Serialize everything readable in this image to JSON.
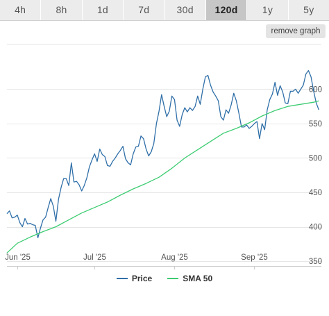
{
  "tabs": [
    {
      "label": "4h",
      "active": false
    },
    {
      "label": "8h",
      "active": false
    },
    {
      "label": "1d",
      "active": false
    },
    {
      "label": "7d",
      "active": false
    },
    {
      "label": "30d",
      "active": false
    },
    {
      "label": "120d",
      "active": true
    },
    {
      "label": "1y",
      "active": false
    },
    {
      "label": "5y",
      "active": false
    }
  ],
  "remove_graph_label": "remove graph",
  "colors": {
    "price": "#2f6fa8",
    "sma": "#3dcc72",
    "grid": "#e6e6e6"
  },
  "legend": [
    {
      "label": "Price",
      "color": "#2f6fa8"
    },
    {
      "label": "SMA 50",
      "color": "#3dcc72"
    }
  ],
  "chart_data": {
    "type": "line",
    "x_unit": "day index (0 = Jun 1 2025)",
    "xlim": [
      -4,
      118
    ],
    "ylim": [
      343,
      665
    ],
    "y_ticks": [
      350,
      400,
      450,
      500,
      550,
      600
    ],
    "x_ticks": [
      {
        "label": "Jun '25",
        "x": 0
      },
      {
        "label": "Jul '25",
        "x": 30
      },
      {
        "label": "Aug '25",
        "x": 61
      },
      {
        "label": "Sep '25",
        "x": 92
      }
    ],
    "grid": true,
    "legend_position": "bottom",
    "series": [
      {
        "name": "Price",
        "points": [
          [
            -4,
            419
          ],
          [
            -3,
            423
          ],
          [
            -2,
            413
          ],
          [
            -1,
            414
          ],
          [
            0,
            417
          ],
          [
            1,
            406
          ],
          [
            2,
            400
          ],
          [
            3,
            412
          ],
          [
            4,
            404
          ],
          [
            5,
            405
          ],
          [
            6,
            403
          ],
          [
            7,
            402
          ],
          [
            8,
            384
          ],
          [
            9,
            398
          ],
          [
            10,
            410
          ],
          [
            11,
            414
          ],
          [
            12,
            428
          ],
          [
            13,
            441
          ],
          [
            14,
            430
          ],
          [
            15,
            408
          ],
          [
            16,
            440
          ],
          [
            17,
            457
          ],
          [
            18,
            470
          ],
          [
            19,
            470
          ],
          [
            20,
            460
          ],
          [
            21,
            493
          ],
          [
            22,
            465
          ],
          [
            23,
            466
          ],
          [
            24,
            461
          ],
          [
            25,
            452
          ],
          [
            26,
            460
          ],
          [
            27,
            471
          ],
          [
            28,
            487
          ],
          [
            29,
            497
          ],
          [
            30,
            506
          ],
          [
            31,
            495
          ],
          [
            32,
            513
          ],
          [
            33,
            505
          ],
          [
            34,
            502
          ],
          [
            35,
            489
          ],
          [
            36,
            488
          ],
          [
            37,
            495
          ],
          [
            38,
            500
          ],
          [
            39,
            506
          ],
          [
            40,
            511
          ],
          [
            41,
            517
          ],
          [
            42,
            499
          ],
          [
            43,
            493
          ],
          [
            44,
            490
          ],
          [
            45,
            506
          ],
          [
            46,
            516
          ],
          [
            47,
            517
          ],
          [
            48,
            532
          ],
          [
            49,
            528
          ],
          [
            50,
            513
          ],
          [
            51,
            503
          ],
          [
            52,
            509
          ],
          [
            53,
            521
          ],
          [
            54,
            550
          ],
          [
            55,
            568
          ],
          [
            56,
            592
          ],
          [
            57,
            575
          ],
          [
            58,
            560
          ],
          [
            59,
            568
          ],
          [
            60,
            590
          ],
          [
            61,
            585
          ],
          [
            62,
            555
          ],
          [
            63,
            546
          ],
          [
            64,
            563
          ],
          [
            65,
            573
          ],
          [
            66,
            567
          ],
          [
            67,
            573
          ],
          [
            68,
            569
          ],
          [
            69,
            575
          ],
          [
            70,
            590
          ],
          [
            71,
            578
          ],
          [
            72,
            600
          ],
          [
            73,
            618
          ],
          [
            74,
            620
          ],
          [
            75,
            606
          ],
          [
            76,
            596
          ],
          [
            77,
            590
          ],
          [
            78,
            583
          ],
          [
            79,
            560
          ],
          [
            80,
            555
          ],
          [
            81,
            570
          ],
          [
            82,
            565
          ],
          [
            83,
            577
          ],
          [
            84,
            594
          ],
          [
            85,
            583
          ],
          [
            86,
            565
          ],
          [
            87,
            545
          ],
          [
            88,
            545
          ],
          [
            89,
            548
          ],
          [
            90,
            543
          ],
          [
            91,
            546
          ],
          [
            92,
            550
          ],
          [
            93,
            553
          ],
          [
            94,
            528
          ],
          [
            95,
            550
          ],
          [
            96,
            541
          ],
          [
            97,
            570
          ],
          [
            98,
            585
          ],
          [
            99,
            593
          ],
          [
            100,
            610
          ],
          [
            101,
            591
          ],
          [
            102,
            605
          ],
          [
            103,
            596
          ],
          [
            104,
            580
          ],
          [
            105,
            579
          ],
          [
            106,
            597
          ],
          [
            107,
            597
          ],
          [
            108,
            600
          ],
          [
            109,
            594
          ],
          [
            110,
            600
          ],
          [
            111,
            606
          ],
          [
            112,
            622
          ],
          [
            113,
            627
          ],
          [
            114,
            618
          ],
          [
            115,
            597
          ],
          [
            116,
            580
          ],
          [
            117,
            570
          ]
        ]
      },
      {
        "name": "SMA 50",
        "points": [
          [
            -4,
            362
          ],
          [
            0,
            376
          ],
          [
            5,
            385
          ],
          [
            10,
            393
          ],
          [
            15,
            400
          ],
          [
            20,
            410
          ],
          [
            25,
            420
          ],
          [
            30,
            428
          ],
          [
            35,
            436
          ],
          [
            40,
            446
          ],
          [
            45,
            455
          ],
          [
            50,
            463
          ],
          [
            55,
            472
          ],
          [
            60,
            485
          ],
          [
            65,
            500
          ],
          [
            70,
            512
          ],
          [
            75,
            524
          ],
          [
            80,
            536
          ],
          [
            85,
            543
          ],
          [
            90,
            551
          ],
          [
            95,
            561
          ],
          [
            100,
            569
          ],
          [
            105,
            575
          ],
          [
            110,
            578
          ],
          [
            115,
            581
          ],
          [
            117,
            583
          ]
        ]
      }
    ]
  }
}
